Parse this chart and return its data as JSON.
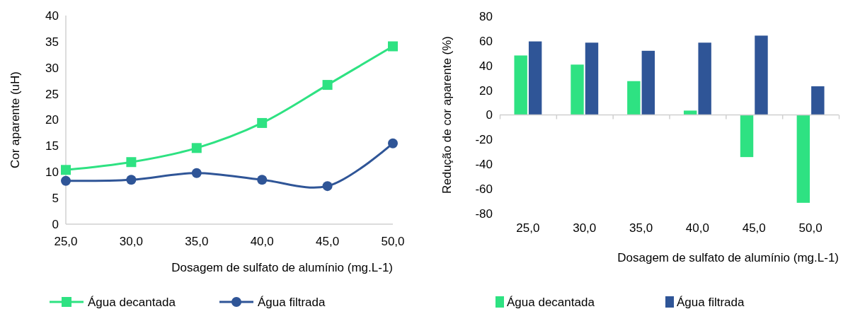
{
  "chart_data": [
    {
      "type": "line",
      "categories": [
        "25,0",
        "30,0",
        "35,0",
        "40,0",
        "45,0",
        "50,0"
      ],
      "xlabel": "Dosagem de sulfato de alumínio (mg.L-1)",
      "ylabel": "Cor aparente (uH)",
      "ylim": [
        0,
        40
      ],
      "yticks": [
        0,
        5,
        10,
        15,
        20,
        25,
        30,
        35,
        40
      ],
      "grid": false,
      "legend": "bottom",
      "series": [
        {
          "name": "Água decantada",
          "color": "#2ee282",
          "marker": "square",
          "values": [
            10.4,
            11.9,
            14.6,
            19.4,
            26.7,
            34.1
          ]
        },
        {
          "name": "Água filtrada",
          "color": "#2f5597",
          "marker": "circle",
          "values": [
            8.3,
            8.5,
            9.8,
            8.5,
            7.3,
            15.5
          ]
        }
      ]
    },
    {
      "type": "bar",
      "categories": [
        "25,0",
        "30,0",
        "35,0",
        "40,0",
        "45,0",
        "50,0"
      ],
      "xlabel": "Dosagem de sulfato de alumínio (mg.L-1)",
      "ylabel": "Redução de cor aparente (%)",
      "ylim": [
        -80,
        80
      ],
      "yticks": [
        -80,
        -60,
        -40,
        -20,
        0,
        20,
        40,
        60,
        80
      ],
      "grid": false,
      "legend": "bottom",
      "ref_lines": [
        {
          "axis": "y",
          "value": 0,
          "color": "#d0d0d0"
        }
      ],
      "series": [
        {
          "name": "Água decantada",
          "color": "#2ee282",
          "values": [
            48.2,
            40.8,
            27.4,
            3.5,
            -34.2,
            -71.3
          ]
        },
        {
          "name": "Água filtrada",
          "color": "#2f5597",
          "values": [
            59.6,
            58.6,
            52,
            58.6,
            64.3,
            23.2
          ]
        }
      ]
    }
  ]
}
